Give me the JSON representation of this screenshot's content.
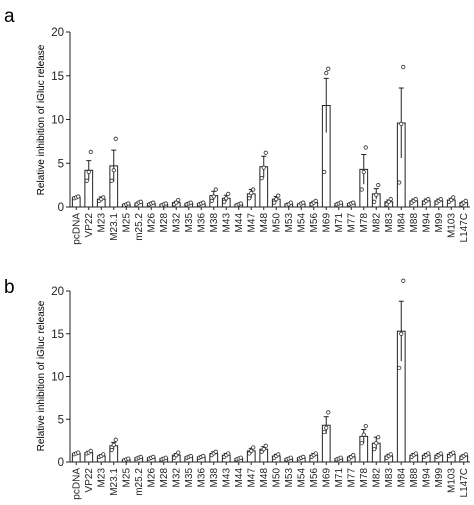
{
  "chart_data": [
    {
      "type": "bar",
      "panel_label": "a",
      "ylabel": "Relative inhibition of iGluc release",
      "ylim": [
        0,
        20
      ],
      "yticks": [
        0,
        5,
        10,
        15,
        20
      ],
      "categories": [
        "pcDNA",
        "VP22",
        "M23",
        "M23.1",
        "M25",
        "m25.2",
        "M26",
        "M28",
        "M32",
        "M35",
        "M36",
        "M38",
        "M43",
        "M44",
        "M47",
        "M48",
        "M50",
        "M53",
        "M54",
        "M56",
        "M69",
        "M71",
        "M77",
        "M78",
        "M82",
        "M83",
        "M84",
        "M88",
        "M94",
        "M99",
        "M103",
        "L147C"
      ],
      "values": [
        1.1,
        4.2,
        0.9,
        4.7,
        0.3,
        0.45,
        0.4,
        0.3,
        0.5,
        0.4,
        0.4,
        1.3,
        1.0,
        0.3,
        1.5,
        4.6,
        0.9,
        0.35,
        0.35,
        0.5,
        11.6,
        0.4,
        0.4,
        4.3,
        1.5,
        0.6,
        9.6,
        0.7,
        0.7,
        0.7,
        0.8,
        0.5
      ],
      "errors": [
        0.1,
        1.1,
        0.25,
        1.8,
        0.1,
        0.1,
        0.1,
        0.1,
        0.15,
        0.1,
        0.1,
        0.5,
        0.35,
        0.1,
        0.5,
        1.2,
        0.3,
        0.1,
        0.1,
        0.15,
        3.1,
        0.1,
        0.1,
        1.7,
        0.6,
        0.2,
        4.0,
        0.2,
        0.2,
        0.2,
        0.2,
        0.15
      ],
      "points": [
        [
          1.0,
          1.1,
          1.2
        ],
        [
          3.0,
          4.0,
          6.3
        ],
        [
          0.7,
          0.9,
          1.1
        ],
        [
          3.0,
          4.2,
          7.8
        ],
        [
          0.2,
          0.3,
          0.4
        ],
        [
          0.3,
          0.5,
          0.6
        ],
        [
          0.3,
          0.4,
          0.5
        ],
        [
          0.2,
          0.3,
          0.4
        ],
        [
          0.3,
          0.5,
          0.8
        ],
        [
          0.3,
          0.4,
          0.5
        ],
        [
          0.3,
          0.4,
          0.5
        ],
        [
          0.7,
          1.2,
          2.0
        ],
        [
          0.6,
          1.0,
          1.5
        ],
        [
          0.2,
          0.3,
          0.4
        ],
        [
          1.0,
          1.6,
          2.0
        ],
        [
          3.3,
          4.5,
          6.2
        ],
        [
          0.5,
          0.9,
          1.3
        ],
        [
          0.2,
          0.3,
          0.5
        ],
        [
          0.2,
          0.4,
          0.5
        ],
        [
          0.3,
          0.5,
          0.7
        ],
        [
          4.0,
          15.3,
          15.8
        ],
        [
          0.3,
          0.4,
          0.5
        ],
        [
          0.3,
          0.4,
          0.5
        ],
        [
          2.0,
          4.0,
          6.8
        ],
        [
          0.6,
          1.4,
          2.5
        ],
        [
          0.3,
          0.6,
          0.9
        ],
        [
          2.8,
          9.5,
          16.0
        ],
        [
          0.5,
          0.7,
          0.9
        ],
        [
          0.5,
          0.7,
          0.9
        ],
        [
          0.5,
          0.7,
          0.9
        ],
        [
          0.6,
          0.8,
          1.1
        ],
        [
          0.3,
          0.5,
          0.7
        ]
      ]
    },
    {
      "type": "bar",
      "panel_label": "b",
      "ylabel": "Relative inhibition of iGluc release",
      "ylim": [
        0,
        20
      ],
      "yticks": [
        0,
        5,
        10,
        15,
        20
      ],
      "categories": [
        "pcDNA",
        "VP22",
        "M23",
        "M23.1",
        "M25",
        "m25.2",
        "M26",
        "M28",
        "M32",
        "M35",
        "M36",
        "M38",
        "M43",
        "M44",
        "M47",
        "M48",
        "M50",
        "M53",
        "M54",
        "M56",
        "M69",
        "M71",
        "M77",
        "M78",
        "M82",
        "M83",
        "M84",
        "M88",
        "M94",
        "M99",
        "M103",
        "L147C"
      ],
      "values": [
        1.0,
        1.1,
        0.7,
        1.9,
        0.3,
        0.5,
        0.5,
        0.4,
        0.8,
        0.6,
        0.6,
        1.0,
        0.8,
        0.4,
        1.3,
        1.5,
        0.7,
        0.4,
        0.5,
        0.8,
        4.3,
        0.4,
        0.6,
        3.0,
        2.2,
        0.7,
        15.3,
        0.8,
        0.8,
        0.8,
        0.9,
        0.7
      ],
      "errors": [
        0.1,
        0.15,
        0.15,
        0.4,
        0.1,
        0.1,
        0.1,
        0.1,
        0.2,
        0.1,
        0.1,
        0.2,
        0.2,
        0.1,
        0.3,
        0.3,
        0.2,
        0.1,
        0.1,
        0.2,
        1.0,
        0.1,
        0.15,
        0.8,
        0.7,
        0.2,
        3.5,
        0.2,
        0.2,
        0.2,
        0.2,
        0.15
      ],
      "points": [
        [
          0.9,
          1.0,
          1.1
        ],
        [
          1.0,
          1.1,
          1.3
        ],
        [
          0.6,
          0.7,
          0.9
        ],
        [
          1.4,
          2.0,
          2.6
        ],
        [
          0.2,
          0.3,
          0.4
        ],
        [
          0.4,
          0.5,
          0.6
        ],
        [
          0.4,
          0.5,
          0.6
        ],
        [
          0.3,
          0.4,
          0.5
        ],
        [
          0.5,
          0.8,
          1.1
        ],
        [
          0.5,
          0.6,
          0.7
        ],
        [
          0.5,
          0.6,
          0.7
        ],
        [
          0.8,
          1.0,
          1.2
        ],
        [
          0.6,
          0.8,
          1.0
        ],
        [
          0.3,
          0.4,
          0.5
        ],
        [
          1.0,
          1.3,
          1.7
        ],
        [
          1.2,
          1.5,
          1.9
        ],
        [
          0.5,
          0.7,
          0.9
        ],
        [
          0.3,
          0.4,
          0.5
        ],
        [
          0.4,
          0.5,
          0.6
        ],
        [
          0.6,
          0.8,
          1.0
        ],
        [
          3.5,
          4.0,
          5.8
        ],
        [
          0.3,
          0.4,
          0.5
        ],
        [
          0.4,
          0.6,
          0.8
        ],
        [
          2.2,
          3.2,
          4.2
        ],
        [
          1.5,
          2.2,
          2.9
        ],
        [
          0.5,
          0.7,
          0.9
        ],
        [
          11.0,
          15.0,
          21.2
        ],
        [
          0.6,
          0.8,
          1.0
        ],
        [
          0.6,
          0.8,
          1.0
        ],
        [
          0.6,
          0.8,
          1.0
        ],
        [
          0.7,
          0.9,
          1.1
        ],
        [
          0.5,
          0.7,
          0.9
        ]
      ]
    }
  ]
}
